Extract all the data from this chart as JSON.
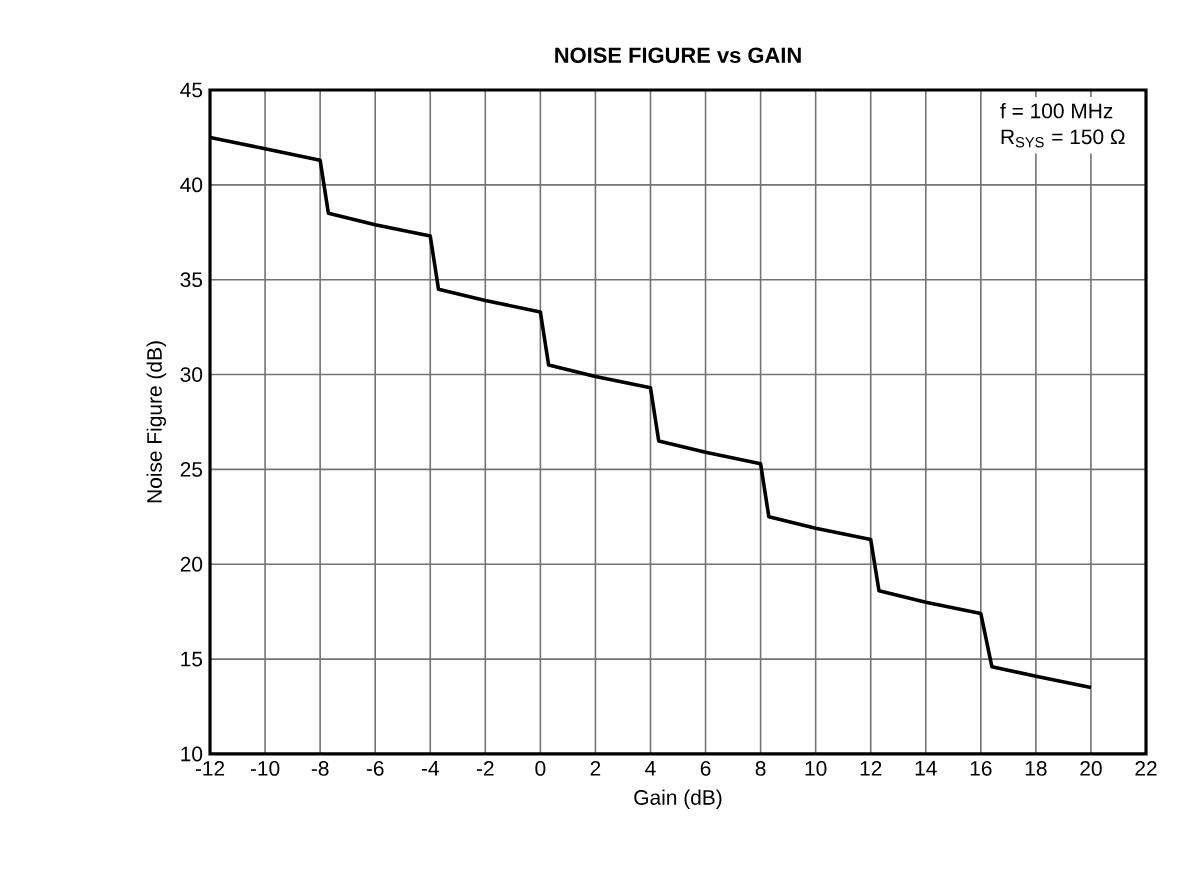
{
  "chart_data": {
    "type": "line",
    "title": "NOISE FIGURE vs GAIN",
    "xlabel": "Gain (dB)",
    "ylabel": "Noise Figure (dB)",
    "annotations": [
      "f = 100 MHz",
      "R$_{SYS}$ = 150 Ω"
    ],
    "x": [
      -12,
      -10,
      -8,
      -7.7,
      -6,
      -4,
      -3.7,
      -2,
      0,
      0.3,
      2,
      4,
      4.3,
      6,
      8,
      8.3,
      10,
      12,
      12.3,
      14,
      16,
      16.4,
      18,
      20
    ],
    "series": [
      {
        "color": "#000000",
        "values": [
          42.5,
          41.9,
          41.3,
          38.5,
          37.9,
          37.3,
          34.5,
          33.9,
          33.3,
          30.5,
          29.9,
          29.3,
          26.5,
          25.9,
          25.3,
          22.5,
          21.9,
          21.3,
          18.6,
          18.0,
          17.4,
          14.6,
          14.1,
          13.5
        ]
      }
    ],
    "xlim": [
      -12,
      22
    ],
    "ylim": [
      10,
      45
    ],
    "xticks": [
      -12,
      -10,
      -8,
      -6,
      -4,
      -2,
      0,
      2,
      4,
      6,
      8,
      10,
      12,
      14,
      16,
      18,
      20,
      22
    ],
    "yticks": [
      10,
      15,
      20,
      25,
      30,
      35,
      40,
      45
    ],
    "grid": true,
    "marker": "none",
    "line_style": "solid"
  }
}
